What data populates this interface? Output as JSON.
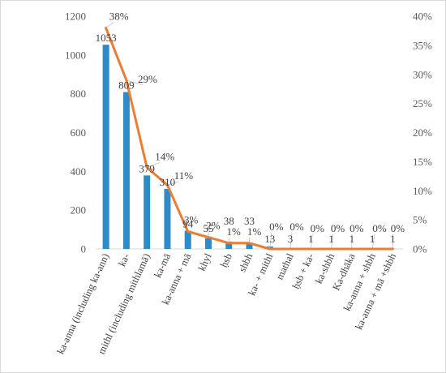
{
  "chart_data": {
    "type": "bar",
    "categories": [
      "ka-anna (including ka-ann)",
      "ka-",
      "mithl (including mithlamā)",
      "ka-mā",
      "ka-anna + mā",
      "khyl",
      "ḥsb",
      "shbh",
      "ka- + mithl",
      "mathal",
      "ḥsb + ka-",
      "ka-shbh",
      "Ka-dhāka",
      "ka-anna + shbh",
      "ka-anna + mā +shbh"
    ],
    "series": [
      {
        "type": "bar",
        "axis": "left",
        "color": "#2E8BC9",
        "values": [
          1053,
          809,
          379,
          310,
          94,
          55,
          38,
          33,
          13,
          3,
          1,
          1,
          1,
          1,
          1
        ],
        "labels": [
          "1053",
          "809",
          "379",
          "310",
          "94",
          "55",
          "38",
          "33",
          "13",
          "3",
          "1",
          "1",
          "1",
          "1",
          "1"
        ]
      },
      {
        "type": "line",
        "axis": "right",
        "color": "#ED7D31",
        "values": [
          0.38,
          0.29,
          0.14,
          0.11,
          0.03,
          0.02,
          0.01,
          0.01,
          0.0,
          0.0,
          0.0,
          0.0,
          0.0,
          0.0,
          0.0
        ],
        "labels": [
          "38%",
          "29%",
          "14%",
          "11%",
          "3%",
          "2%",
          "1%",
          "1%",
          "0%",
          "0%",
          "0%",
          "0%",
          "0%",
          "0%",
          "0%"
        ]
      }
    ],
    "y_left": {
      "range": [
        0,
        1200
      ],
      "ticks": [
        0,
        200,
        400,
        600,
        800,
        1000,
        1200
      ],
      "tick_labels": [
        "0",
        "200",
        "400",
        "600",
        "800",
        "1000",
        "1200"
      ]
    },
    "y_right": {
      "range": [
        0,
        0.4
      ],
      "ticks": [
        0,
        0.05,
        0.1,
        0.15,
        0.2,
        0.25,
        0.3,
        0.35,
        0.4
      ],
      "tick_labels": [
        "0%",
        "5%",
        "10%",
        "15%",
        "20%",
        "25%",
        "30%",
        "35%",
        "40%"
      ]
    },
    "title": "",
    "xlabel": "",
    "ylabel": "",
    "grid": false,
    "legend": "none"
  }
}
